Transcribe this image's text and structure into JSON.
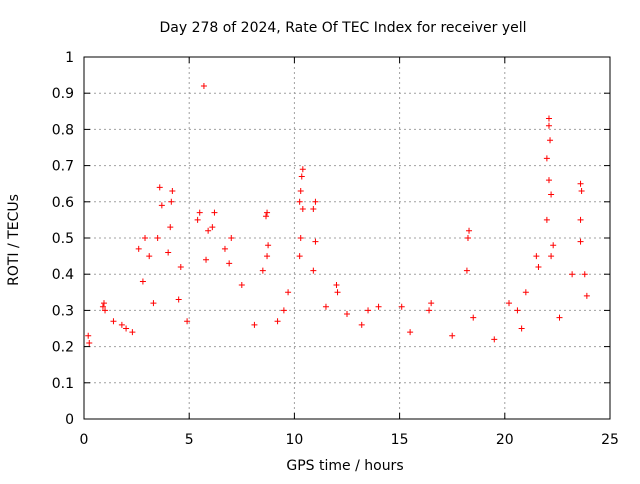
{
  "chart_data": {
    "type": "scatter",
    "title": "Day 278 of 2024, Rate Of TEC Index for receiver yell",
    "xlabel": "GPS time / hours",
    "ylabel": "ROTI / TECUs",
    "xlim": [
      0,
      25
    ],
    "ylim": [
      0,
      1
    ],
    "xticks": [
      0,
      5,
      10,
      15,
      20,
      25
    ],
    "yticks": [
      0,
      0.1,
      0.2,
      0.3,
      0.4,
      0.5,
      0.6,
      0.7,
      0.8,
      0.9,
      1
    ],
    "ytick_labels": [
      "0",
      "0.1",
      "0.2",
      "0.3",
      "0.4",
      "0.5",
      "0.6",
      "0.7",
      "0.8",
      "0.9",
      "1"
    ],
    "grid": true,
    "marker": "+",
    "color": "#ff0000",
    "series": [
      {
        "name": "ROTI",
        "points": [
          [
            5.7,
            0.92
          ],
          [
            22.1,
            0.83
          ],
          [
            22.1,
            0.81
          ],
          [
            22.15,
            0.77
          ],
          [
            22.0,
            0.72
          ],
          [
            10.4,
            0.69
          ],
          [
            10.35,
            0.67
          ],
          [
            3.6,
            0.64
          ],
          [
            4.2,
            0.63
          ],
          [
            10.3,
            0.63
          ],
          [
            23.6,
            0.65
          ],
          [
            23.65,
            0.63
          ],
          [
            22.1,
            0.66
          ],
          [
            22.2,
            0.62
          ],
          [
            11.0,
            0.6
          ],
          [
            4.15,
            0.6
          ],
          [
            3.7,
            0.59
          ],
          [
            10.25,
            0.6
          ],
          [
            10.4,
            0.58
          ],
          [
            10.9,
            0.58
          ],
          [
            8.7,
            0.57
          ],
          [
            8.65,
            0.56
          ],
          [
            6.2,
            0.57
          ],
          [
            5.5,
            0.57
          ],
          [
            5.4,
            0.55
          ],
          [
            23.6,
            0.55
          ],
          [
            22.0,
            0.55
          ],
          [
            4.1,
            0.53
          ],
          [
            5.9,
            0.52
          ],
          [
            6.1,
            0.53
          ],
          [
            18.3,
            0.52
          ],
          [
            18.25,
            0.5
          ],
          [
            3.5,
            0.5
          ],
          [
            2.9,
            0.5
          ],
          [
            10.3,
            0.5
          ],
          [
            11.0,
            0.49
          ],
          [
            23.6,
            0.49
          ],
          [
            22.3,
            0.48
          ],
          [
            22.2,
            0.45
          ],
          [
            8.75,
            0.48
          ],
          [
            8.7,
            0.45
          ],
          [
            7.0,
            0.5
          ],
          [
            6.7,
            0.47
          ],
          [
            3.1,
            0.45
          ],
          [
            2.6,
            0.47
          ],
          [
            4.0,
            0.46
          ],
          [
            21.5,
            0.45
          ],
          [
            21.6,
            0.42
          ],
          [
            5.8,
            0.44
          ],
          [
            10.25,
            0.45
          ],
          [
            6.9,
            0.43
          ],
          [
            18.2,
            0.41
          ],
          [
            10.9,
            0.41
          ],
          [
            8.5,
            0.41
          ],
          [
            4.6,
            0.42
          ],
          [
            23.2,
            0.4
          ],
          [
            23.8,
            0.4
          ],
          [
            2.8,
            0.38
          ],
          [
            12.0,
            0.37
          ],
          [
            12.05,
            0.35
          ],
          [
            21.0,
            0.35
          ],
          [
            9.7,
            0.35
          ],
          [
            3.3,
            0.32
          ],
          [
            4.5,
            0.33
          ],
          [
            7.5,
            0.37
          ],
          [
            0.9,
            0.31
          ],
          [
            1.0,
            0.3
          ],
          [
            0.95,
            0.32
          ],
          [
            14.0,
            0.31
          ],
          [
            15.1,
            0.31
          ],
          [
            16.5,
            0.32
          ],
          [
            16.4,
            0.3
          ],
          [
            13.5,
            0.3
          ],
          [
            12.5,
            0.29
          ],
          [
            11.5,
            0.31
          ],
          [
            9.5,
            0.3
          ],
          [
            20.2,
            0.32
          ],
          [
            20.6,
            0.3
          ],
          [
            23.9,
            0.34
          ],
          [
            0.2,
            0.23
          ],
          [
            0.25,
            0.21
          ],
          [
            1.4,
            0.27
          ],
          [
            1.8,
            0.26
          ],
          [
            2.0,
            0.25
          ],
          [
            2.3,
            0.24
          ],
          [
            4.9,
            0.27
          ],
          [
            8.1,
            0.26
          ],
          [
            9.2,
            0.27
          ],
          [
            13.2,
            0.26
          ],
          [
            15.5,
            0.24
          ],
          [
            17.5,
            0.23
          ],
          [
            19.5,
            0.22
          ],
          [
            18.5,
            0.28
          ],
          [
            20.8,
            0.25
          ],
          [
            22.6,
            0.28
          ]
        ]
      }
    ]
  }
}
